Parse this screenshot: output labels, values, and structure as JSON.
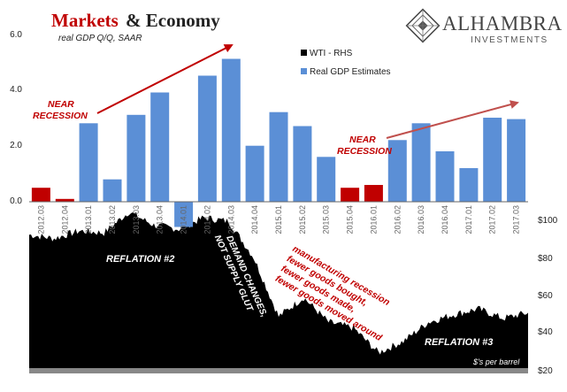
{
  "header": {
    "title_markets": "Markets",
    "title_rest": " & Economy",
    "subtitle": "real GDP Q/Q, SAAR",
    "brand_name": "ALHAMBRA",
    "brand_sub": "INVESTMENTS"
  },
  "colors": {
    "gdp_bar": "#5b8fd6",
    "gdp_bar_recession": "#c00000",
    "wti_area": "#000000",
    "annotation_red": "#c00000",
    "annotation_white": "#ffffff",
    "title_red": "#c00000",
    "axis_strip": "#888888"
  },
  "chart_data": [
    {
      "type": "bar",
      "name": "Real GDP Estimates",
      "ylabel": "",
      "ylim": [
        0,
        6
      ],
      "yticks": [
        "0.0",
        "2.0",
        "4.0",
        "6.0"
      ],
      "categories": [
        "2012.03",
        "2012.04",
        "2013.01",
        "2013.02",
        "2013.03",
        "2013.04",
        "2014.01",
        "2014.02",
        "2014.03",
        "2014.04",
        "2015.01",
        "2015.02",
        "2015.03",
        "2015.04",
        "2016.01",
        "2016.02",
        "2016.03",
        "2016.04",
        "2017.01",
        "2017.02",
        "2017.03"
      ],
      "values": [
        0.5,
        0.1,
        2.8,
        0.8,
        3.1,
        3.9,
        -0.9,
        4.5,
        5.1,
        2.0,
        3.2,
        2.7,
        1.6,
        0.5,
        0.6,
        2.2,
        2.8,
        1.8,
        1.2,
        3.0,
        2.95
      ],
      "highlight": [
        0,
        1,
        13,
        14
      ],
      "recession_labels": [
        "2012.03",
        "2012.04",
        "2015.04",
        "2016.01"
      ],
      "legend": [
        "WTI - RHS",
        "Real GDP Estimates"
      ],
      "legend_position": "top-center"
    },
    {
      "type": "area",
      "name": "WTI - RHS",
      "ylabel": "$'s per barrel",
      "ylim": [
        20,
        110
      ],
      "yticks": [
        "$20",
        "$40",
        "$60",
        "$80",
        "$100"
      ],
      "x": [
        "2012.03",
        "2012.04",
        "2013.01",
        "2013.02",
        "2013.03",
        "2013.04",
        "2014.01",
        "2014.02",
        "2014.03",
        "2014.04",
        "2015.01",
        "2015.02",
        "2015.03",
        "2015.04",
        "2016.01",
        "2016.02",
        "2016.03",
        "2016.04",
        "2017.01",
        "2017.02",
        "2017.03"
      ],
      "values": [
        92,
        90,
        94,
        93,
        104,
        97,
        95,
        101,
        99,
        80,
        49,
        59,
        46,
        43,
        30,
        36,
        46,
        50,
        53,
        48,
        51
      ],
      "grid": false
    }
  ],
  "annotations": {
    "near_recession_1": [
      "NEAR",
      "RECESSION"
    ],
    "near_recession_2": [
      "NEAR",
      "RECESSION"
    ],
    "reflation_2": "REFLATION #2",
    "reflation_3": "REFLATION #3",
    "demand_changes": [
      "DEMAND CHANGES,",
      "NOT SUPPLY GLUT"
    ],
    "manufacturing": [
      "manufacturing recession",
      "fewer goods bought,",
      "fewer goods made,",
      "fewer goods moved around"
    ]
  }
}
